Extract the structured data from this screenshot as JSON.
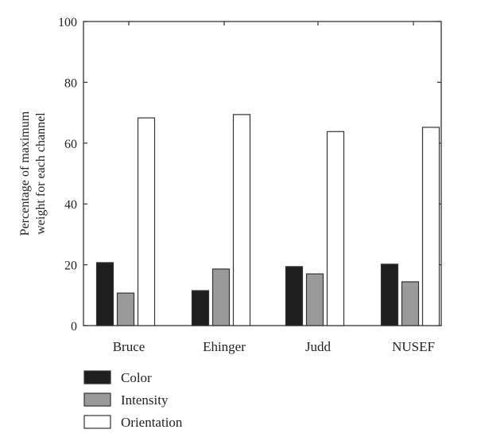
{
  "chart_data": {
    "type": "bar",
    "title": "",
    "xlabel": "",
    "ylabel_lines": [
      "Percentage of maximum",
      "weight for each channel"
    ],
    "ylim": [
      0,
      100
    ],
    "yticks": [
      0,
      20,
      40,
      60,
      80,
      100
    ],
    "categories": [
      "Bruce",
      "Ehinger",
      "Judd",
      "NUSEF"
    ],
    "series": [
      {
        "name": "Color",
        "color": "#1e1e1e",
        "values": [
          20.7,
          11.5,
          19.4,
          20.2
        ]
      },
      {
        "name": "Intensity",
        "color": "#9a9a9a",
        "values": [
          10.7,
          18.6,
          17.0,
          14.4
        ]
      },
      {
        "name": "Orientation",
        "color": "#ffffff",
        "values": [
          68.3,
          69.4,
          63.8,
          65.2
        ]
      }
    ],
    "grid": false,
    "legend_position": "bottom-left"
  }
}
